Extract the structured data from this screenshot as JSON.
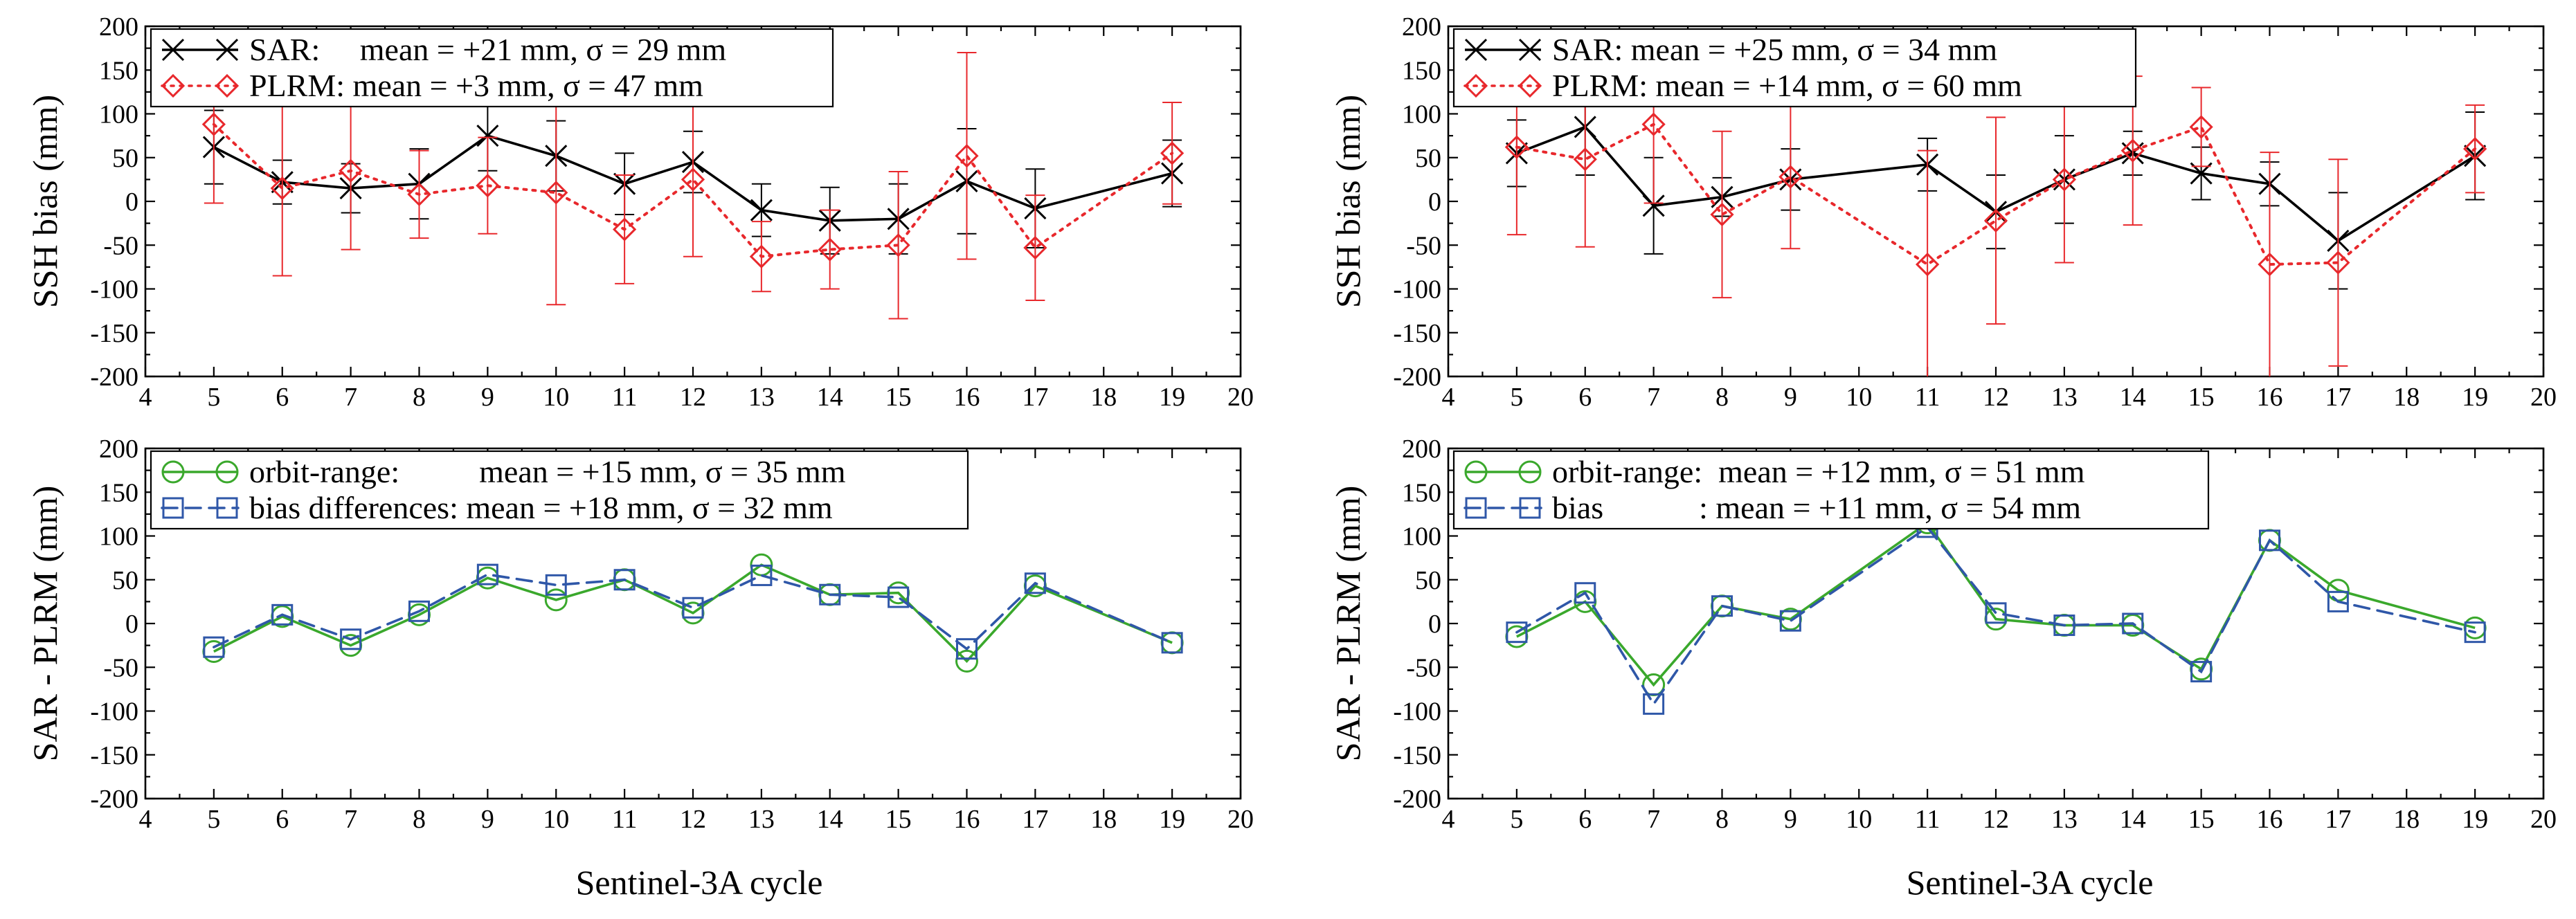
{
  "figure": {
    "xlabel_left": "Sentinel-3A cycle",
    "xlabel_right": "Sentinel-3A cycle"
  },
  "colors": {
    "sar": "#000000",
    "plrm": "#e8282c",
    "orbit_range": "#3aa82c",
    "bias_diff": "#2f57a8"
  },
  "chart_data": [
    {
      "id": "top-left",
      "type": "line",
      "ylabel": "SSH bias  (mm)",
      "xlim": [
        4,
        20
      ],
      "ylim": [
        -200,
        200
      ],
      "xticks": [
        4,
        5,
        6,
        7,
        8,
        9,
        10,
        11,
        12,
        13,
        14,
        15,
        16,
        17,
        18,
        19,
        20
      ],
      "yticks": [
        -200,
        -150,
        -100,
        -50,
        0,
        50,
        100,
        150,
        200
      ],
      "legend": [
        "SAR:     mean = +21 mm, σ = 29 mm",
        "PLRM: mean = +3 mm, σ = 47 mm"
      ],
      "legend_position": "top-left",
      "series": [
        {
          "name": "SAR",
          "marker": "x",
          "line": "solid",
          "color": "#000000",
          "x": [
            5,
            6,
            7,
            8,
            9,
            10,
            11,
            12,
            13,
            14,
            15,
            16,
            17,
            19
          ],
          "y": [
            62,
            22,
            15,
            20,
            75,
            52,
            20,
            45,
            -10,
            -22,
            -20,
            23,
            -8,
            32
          ],
          "err": [
            42,
            25,
            28,
            40,
            40,
            40,
            35,
            35,
            30,
            38,
            40,
            60,
            45,
            38
          ]
        },
        {
          "name": "PLRM",
          "marker": "diamond",
          "line": "dotted",
          "color": "#e8282c",
          "x": [
            5,
            6,
            7,
            8,
            9,
            10,
            11,
            12,
            13,
            14,
            15,
            16,
            17,
            19
          ],
          "y": [
            88,
            15,
            35,
            8,
            18,
            10,
            -32,
            25,
            -63,
            -55,
            -50,
            52,
            -53,
            55
          ],
          "err": [
            90,
            100,
            90,
            50,
            55,
            128,
            62,
            88,
            40,
            45,
            84,
            118,
            60,
            58
          ]
        }
      ]
    },
    {
      "id": "top-right",
      "type": "line",
      "ylabel": "SSH bias  (mm)",
      "xlim": [
        4,
        20
      ],
      "ylim": [
        -200,
        200
      ],
      "xticks": [
        4,
        5,
        6,
        7,
        8,
        9,
        10,
        11,
        12,
        13,
        14,
        15,
        16,
        17,
        18,
        19,
        20
      ],
      "yticks": [
        -200,
        -150,
        -100,
        -50,
        0,
        50,
        100,
        150,
        200
      ],
      "legend": [
        "SAR: mean = +25 mm, σ = 34 mm",
        "PLRM: mean = +14 mm, σ = 60 mm"
      ],
      "legend_position": "top-left",
      "series": [
        {
          "name": "SAR",
          "marker": "x",
          "line": "solid",
          "color": "#000000",
          "x": [
            5,
            6,
            7,
            8,
            9,
            11,
            12,
            13,
            14,
            15,
            16,
            17,
            19
          ],
          "y": [
            55,
            85,
            -5,
            5,
            25,
            42,
            -12,
            25,
            55,
            32,
            20,
            -45,
            52
          ],
          "err": [
            38,
            55,
            55,
            22,
            35,
            30,
            42,
            50,
            25,
            30,
            25,
            55,
            50
          ]
        },
        {
          "name": "PLRM",
          "marker": "diamond",
          "line": "dotted",
          "color": "#e8282c",
          "x": [
            5,
            6,
            7,
            8,
            9,
            11,
            12,
            13,
            14,
            15,
            16,
            17,
            19
          ],
          "y": [
            62,
            48,
            88,
            -15,
            28,
            -72,
            -22,
            25,
            58,
            85,
            -72,
            -70,
            60
          ],
          "err": [
            100,
            100,
            90,
            95,
            82,
            130,
            118,
            95,
            85,
            45,
            128,
            118,
            50
          ]
        }
      ]
    },
    {
      "id": "bottom-left",
      "type": "line",
      "ylabel": "SAR - PLRM (mm)",
      "xlim": [
        4,
        20
      ],
      "ylim": [
        -200,
        200
      ],
      "xticks": [
        4,
        5,
        6,
        7,
        8,
        9,
        10,
        11,
        12,
        13,
        14,
        15,
        16,
        17,
        18,
        19,
        20
      ],
      "yticks": [
        -200,
        -150,
        -100,
        -50,
        0,
        50,
        100,
        150,
        200
      ],
      "legend": [
        "orbit-range:          mean = +15 mm, σ = 35 mm",
        "bias differences: mean = +18 mm, σ = 32 mm"
      ],
      "legend_position": "top-left",
      "series": [
        {
          "name": "orbit-range",
          "marker": "circle",
          "line": "solid",
          "color": "#3aa82c",
          "x": [
            5,
            6,
            7,
            8,
            9,
            10,
            11,
            12,
            13,
            14,
            15,
            16,
            17,
            19
          ],
          "y": [
            -32,
            8,
            -25,
            10,
            52,
            27,
            50,
            12,
            67,
            33,
            35,
            -43,
            43,
            -22
          ]
        },
        {
          "name": "bias differences",
          "marker": "square",
          "line": "dashed",
          "color": "#2f57a8",
          "x": [
            5,
            6,
            7,
            8,
            9,
            10,
            11,
            12,
            13,
            14,
            15,
            16,
            17,
            19
          ],
          "y": [
            -27,
            10,
            -18,
            14,
            56,
            44,
            50,
            18,
            55,
            33,
            30,
            -29,
            46,
            -22
          ]
        }
      ]
    },
    {
      "id": "bottom-right",
      "type": "line",
      "ylabel": "SAR - PLRM (mm)",
      "xlim": [
        4,
        20
      ],
      "ylim": [
        -200,
        200
      ],
      "xticks": [
        4,
        5,
        6,
        7,
        8,
        9,
        10,
        11,
        12,
        13,
        14,
        15,
        16,
        17,
        18,
        19,
        20
      ],
      "yticks": [
        -200,
        -150,
        -100,
        -50,
        0,
        50,
        100,
        150,
        200
      ],
      "legend": [
        "orbit-range:  mean = +12 mm, σ = 51 mm",
        "bias            : mean = +11 mm, σ = 54 mm"
      ],
      "legend_position": "top-left",
      "series": [
        {
          "name": "orbit-range",
          "marker": "circle",
          "line": "solid",
          "color": "#3aa82c",
          "x": [
            5,
            6,
            7,
            8,
            9,
            11,
            12,
            13,
            14,
            15,
            16,
            17,
            19
          ],
          "y": [
            -15,
            25,
            -70,
            20,
            5,
            115,
            5,
            -2,
            -2,
            -52,
            95,
            38,
            -5
          ]
        },
        {
          "name": "bias",
          "marker": "square",
          "line": "dashed",
          "color": "#2f57a8",
          "x": [
            5,
            6,
            7,
            8,
            9,
            11,
            12,
            13,
            14,
            15,
            16,
            17,
            19
          ],
          "y": [
            -10,
            35,
            -92,
            20,
            3,
            110,
            12,
            -2,
            0,
            -55,
            95,
            25,
            -10
          ]
        }
      ]
    }
  ]
}
